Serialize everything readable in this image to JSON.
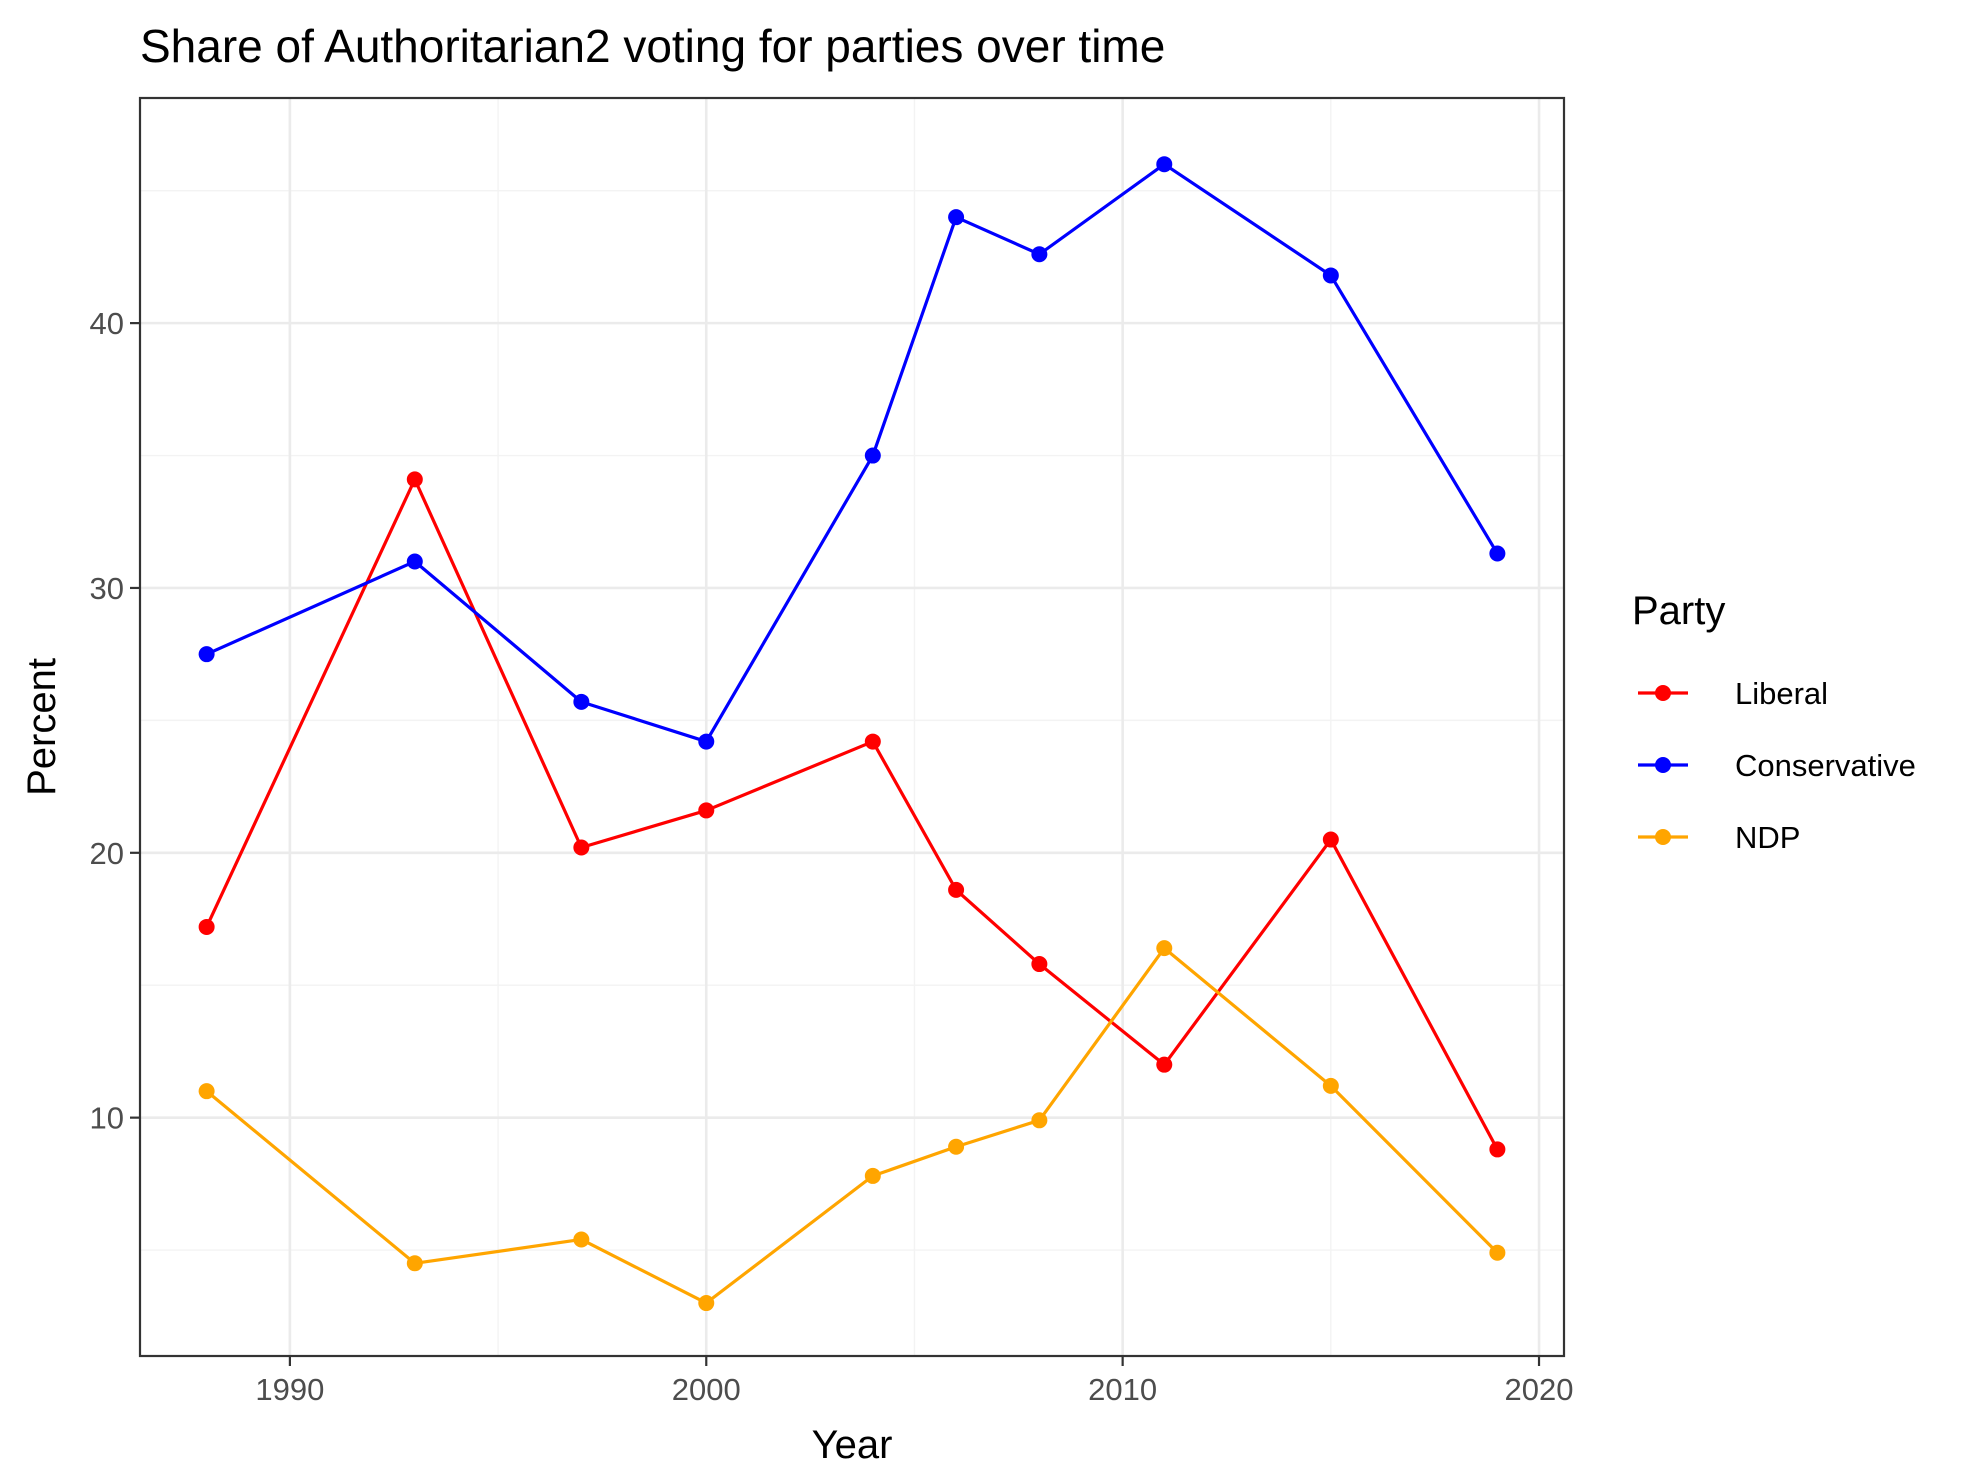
{
  "chart_data": {
    "type": "line",
    "title": "Share of Authoritarian2 voting for parties over time",
    "xlabel": "Year",
    "ylabel": "Percent",
    "xlim": [
      1986.4,
      2020.6
    ],
    "ylim": [
      1.0,
      48.5
    ],
    "x_ticks": [
      1990,
      2000,
      2010,
      2020
    ],
    "x_tick_labels": [
      "1990",
      "2000",
      "2010",
      "2020"
    ],
    "y_ticks": [
      10,
      20,
      30,
      40
    ],
    "y_tick_labels": [
      "10",
      "20",
      "30",
      "40"
    ],
    "grid": true,
    "legend": {
      "title": "Party",
      "placement": "right"
    },
    "x": [
      1988,
      1993,
      1997,
      2000,
      2004,
      2006,
      2008,
      2011,
      2015,
      2019
    ],
    "series": [
      {
        "name": "Liberal",
        "color": "#FF0000",
        "values": [
          17.2,
          34.1,
          20.2,
          21.6,
          24.2,
          18.6,
          15.8,
          12.0,
          20.5,
          8.8
        ]
      },
      {
        "name": "Conservative",
        "color": "#0000FF",
        "values": [
          27.5,
          31.0,
          25.7,
          24.2,
          35.0,
          44.0,
          42.6,
          46.0,
          41.8,
          31.3
        ]
      },
      {
        "name": "NDP",
        "color": "#FFA500",
        "values": [
          11.0,
          4.5,
          5.4,
          3.0,
          7.8,
          8.9,
          9.9,
          16.4,
          11.2,
          4.9
        ]
      }
    ]
  }
}
